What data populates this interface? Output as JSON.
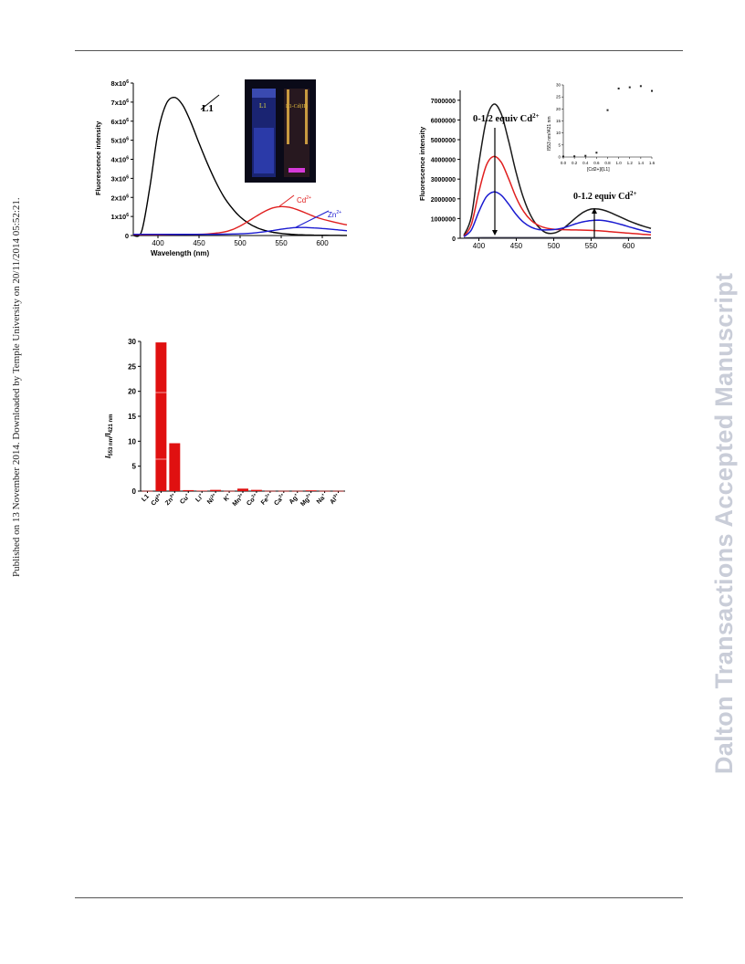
{
  "watermark_left": "Published on 13 November 2014. Downloaded by Temple University on 20/11/2014 05:52:21.",
  "watermark_right": "Dalton Transactions Accepted Manuscript",
  "figure_a": {
    "xlabel": "Wavelength (nm)",
    "ylabel": "Fluorescence intensity",
    "x_ticks": [
      "400",
      "450",
      "500",
      "550",
      "600"
    ],
    "y_ticks": [
      "0",
      "1x10",
      "2x10",
      "3x10",
      "4x10",
      "5x10",
      "6x10",
      "7x10",
      "8x10"
    ],
    "y_tick_exp": "6",
    "label_l1": "L1",
    "label_cd": "Cd",
    "label_zn": "Zn",
    "ion_charge": "2+",
    "inset_label_left": "L1",
    "inset_label_right": "L1-Cd(II)"
  },
  "figure_b": {
    "ylabel": "Fluorescence intensity",
    "x_ticks": [
      "400",
      "450",
      "500",
      "550",
      "600"
    ],
    "y_ticks": [
      "0",
      "1000000",
      "2000000",
      "3000000",
      "4000000",
      "5000000",
      "6000000",
      "7000000"
    ],
    "annotation_top": "0-1.2 equiv Cd",
    "annotation_right": "0-1.2 equiv Cd",
    "ion_charge": "2+",
    "inset": {
      "x_ticks": [
        "0.0",
        "0.2",
        "0.4",
        "0.6",
        "0.8",
        "1.0",
        "1.2",
        "1.4",
        "1.6"
      ],
      "y_ticks": [
        "0",
        "5",
        "10",
        "15",
        "20",
        "25",
        "30"
      ],
      "xlabel": "[Cd2+]/[L1]",
      "ylabel": "I553 nm/I421 nm"
    }
  },
  "figure_c": {
    "ylabel_main": "I",
    "ylabel_sub1": "553 nm",
    "ylabel_mid": "/I",
    "ylabel_sub2": "421 nm",
    "y_ticks": [
      "0",
      "5",
      "10",
      "15",
      "20",
      "25",
      "30"
    ],
    "categories": [
      {
        "name": "L1",
        "charge": ""
      },
      {
        "name": "Cd",
        "charge": "2+"
      },
      {
        "name": "Zn",
        "charge": "2+"
      },
      {
        "name": "Cu",
        "charge": "+"
      },
      {
        "name": "Li",
        "charge": "+"
      },
      {
        "name": "Ni",
        "charge": "2+"
      },
      {
        "name": "K",
        "charge": "+"
      },
      {
        "name": "Mn",
        "charge": "2+"
      },
      {
        "name": "Co",
        "charge": "2+"
      },
      {
        "name": "Fe",
        "charge": "2+"
      },
      {
        "name": "Ca",
        "charge": "2+"
      },
      {
        "name": "Ag",
        "charge": "+"
      },
      {
        "name": "Mg",
        "charge": "2+"
      },
      {
        "name": "Na",
        "charge": "+"
      },
      {
        "name": "Al",
        "charge": "3+"
      }
    ]
  },
  "chart_data": [
    {
      "type": "line",
      "xlabel": "Wavelength (nm)",
      "ylabel": "Fluorescence intensity",
      "xlim": [
        370,
        630
      ],
      "ylim": [
        0,
        8000000
      ],
      "series": [
        {
          "name": "L1",
          "color": "#000000",
          "x": [
            370,
            380,
            390,
            400,
            410,
            420,
            430,
            440,
            450,
            460,
            470,
            480,
            490,
            500,
            510,
            520,
            530,
            540,
            550,
            560,
            570,
            580,
            590,
            600,
            610,
            620,
            630
          ],
          "values": [
            0,
            200000,
            2500000,
            5400000,
            6900000,
            7250000,
            6850000,
            5950000,
            4850000,
            3800000,
            2850000,
            2050000,
            1450000,
            980000,
            650000,
            420000,
            270000,
            170000,
            110000,
            70000,
            45000,
            30000,
            20000,
            15000,
            10000,
            8000,
            5000
          ]
        },
        {
          "name": "Cd2+",
          "color": "#e02020",
          "x": [
            370,
            400,
            440,
            460,
            480,
            490,
            500,
            510,
            520,
            530,
            540,
            550,
            560,
            570,
            580,
            590,
            600,
            610,
            620,
            630
          ],
          "values": [
            50000,
            50000,
            60000,
            80000,
            180000,
            300000,
            500000,
            750000,
            1020000,
            1270000,
            1450000,
            1520000,
            1480000,
            1350000,
            1180000,
            1000000,
            860000,
            750000,
            650000,
            560000
          ]
        },
        {
          "name": "Zn2+",
          "color": "#1a1ad0",
          "x": [
            370,
            400,
            450,
            480,
            500,
            510,
            520,
            530,
            540,
            550,
            560,
            570,
            580,
            590,
            600,
            610,
            620,
            630
          ],
          "values": [
            60000,
            60000,
            60000,
            70000,
            90000,
            110000,
            150000,
            200000,
            260000,
            330000,
            390000,
            420000,
            420000,
            400000,
            370000,
            330000,
            290000,
            250000
          ]
        }
      ]
    },
    {
      "type": "line",
      "ylabel": "Fluorescence intensity",
      "xlim": [
        375,
        630
      ],
      "ylim": [
        0,
        7500000
      ],
      "series": [
        {
          "color": "#1a1a1a",
          "x": [
            380,
            390,
            400,
            410,
            420,
            430,
            440,
            450,
            460,
            470,
            480,
            490,
            500,
            510,
            520,
            530,
            540,
            550,
            560,
            570,
            580,
            590,
            600,
            610,
            620,
            630
          ],
          "values": [
            150000,
            1100000,
            3800000,
            6000000,
            6800000,
            6300000,
            4900000,
            3300000,
            2000000,
            1100000,
            560000,
            280000,
            260000,
            420000,
            720000,
            1050000,
            1330000,
            1480000,
            1480000,
            1390000,
            1230000,
            1060000,
            890000,
            740000,
            610000,
            500000
          ]
        },
        {
          "color": "#e02020",
          "x": [
            380,
            390,
            400,
            410,
            420,
            430,
            440,
            450,
            460,
            470,
            480,
            490,
            500,
            510,
            520,
            530,
            540,
            550,
            560,
            570,
            580,
            590,
            600,
            610,
            620,
            630
          ],
          "values": [
            100000,
            700000,
            2350000,
            3700000,
            4150000,
            3850000,
            3000000,
            2050000,
            1350000,
            900000,
            650000,
            520000,
            460000,
            440000,
            430000,
            420000,
            410000,
            400000,
            380000,
            350000,
            320000,
            290000,
            260000,
            230000,
            200000,
            170000
          ]
        },
        {
          "color": "#1a1ad0",
          "x": [
            380,
            390,
            400,
            410,
            420,
            430,
            440,
            450,
            460,
            470,
            480,
            490,
            500,
            510,
            520,
            530,
            540,
            550,
            560,
            570,
            580,
            590,
            600,
            610,
            620,
            630
          ],
          "values": [
            80000,
            420000,
            1350000,
            2100000,
            2350000,
            2180000,
            1720000,
            1200000,
            800000,
            560000,
            440000,
            420000,
            440000,
            500000,
            610000,
            740000,
            840000,
            900000,
            920000,
            880000,
            800000,
            700000,
            590000,
            480000,
            380000,
            300000
          ]
        },
        {
          "color": "#2a2a3a",
          "x": [
            380,
            420,
            460,
            500,
            540,
            580,
            630
          ],
          "values": [
            20000,
            30000,
            30000,
            30000,
            30000,
            25000,
            20000
          ]
        }
      ]
    },
    {
      "type": "scatter",
      "xlabel": "[Cd2+]/[L1]",
      "ylabel": "I553 nm/I421 nm",
      "xlim": [
        0,
        1.6
      ],
      "ylim": [
        0,
        30
      ],
      "x": [
        0.0,
        0.2,
        0.4,
        0.6,
        0.8,
        1.0,
        1.2,
        1.4,
        1.6
      ],
      "values": [
        0.2,
        0.3,
        0.5,
        1.8,
        19.5,
        28.5,
        29.0,
        29.5,
        27.5
      ]
    },
    {
      "type": "bar",
      "ylabel": "I553 nm/I421 nm",
      "ylim": [
        0,
        30
      ],
      "categories": [
        "L1",
        "Cd2+",
        "Zn2+",
        "Cu+",
        "Li+",
        "Ni2+",
        "K+",
        "Mn2+",
        "Co2+",
        "Fe2+",
        "Ca2+",
        "Ag+",
        "Mg2+",
        "Na+",
        "Al3+"
      ],
      "values": [
        0.05,
        29.8,
        9.6,
        0.2,
        0.1,
        0.25,
        0.05,
        0.5,
        0.25,
        0.05,
        0.05,
        0.05,
        0.15,
        0.05,
        0.05
      ],
      "color": "#e01010"
    }
  ]
}
